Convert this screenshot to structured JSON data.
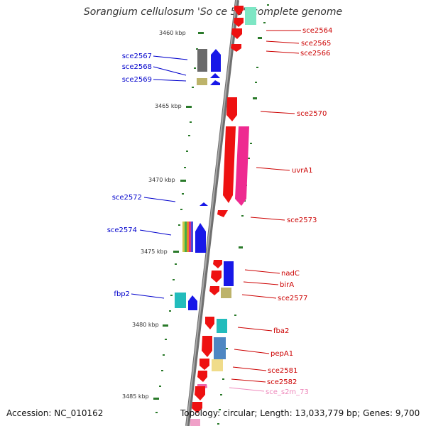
{
  "title": "Sorangium cellulosum 'So ce 56', complete genome",
  "footer": {
    "accession": "Accession: NC_010162",
    "summary": "Topology: circular; Length: 13,033,779 bp; Genes: 9,700"
  },
  "ticks": [
    "3460 kbp",
    "3465 kbp",
    "3470 kbp",
    "3475 kbp",
    "3480 kbp",
    "3485 kbp"
  ],
  "genes_left": [
    "sce2567",
    "sce2568",
    "sce2569",
    "sce2572",
    "sce2574",
    "fbp2"
  ],
  "genes_right": [
    "sce2564",
    "sce2565",
    "sce2566",
    "sce2570",
    "uvrA1",
    "sce2573",
    "nadC",
    "birA",
    "sce2577",
    "fba2",
    "pepA1",
    "sce2581",
    "sce2582",
    "sce_s2m_73"
  ],
  "colors": {
    "label_left": "#0000cc",
    "label_right": "#cc0000",
    "label_rna": "#ee88bb",
    "tick": "#2a7a2a",
    "backbone": "#7a7a7a"
  }
}
